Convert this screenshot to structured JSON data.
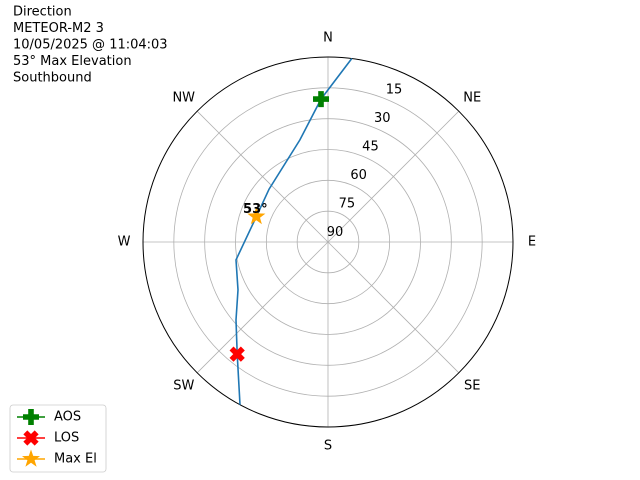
{
  "chart_data": {
    "type": "polar",
    "title_lines": [
      "Direction",
      "METEOR-M2 3",
      "10/05/2025 @ 11:04:03",
      "53° Max Elevation",
      "Southbound"
    ],
    "xticks": [
      {
        "value": 0,
        "label": "N"
      },
      {
        "value": 45,
        "label": "NE"
      },
      {
        "value": 90,
        "label": "E"
      },
      {
        "value": 135,
        "label": "SE"
      },
      {
        "value": 180,
        "label": "S"
      },
      {
        "value": 225,
        "label": "SW"
      },
      {
        "value": 270,
        "label": "W"
      },
      {
        "value": 315,
        "label": "NW"
      }
    ],
    "ylim": [
      90,
      0
    ],
    "yticks": [
      90,
      75,
      60,
      45,
      30,
      15
    ],
    "grid": true,
    "legend": "lower left",
    "track": {
      "color": "#1f77b4",
      "x": [
        7.4,
        357.2,
        344.6,
        311.9,
        289.6,
        259,
        242,
        229.7,
        219,
        208.4
      ],
      "y": [
        0,
        20.4,
        38.5,
        51.5,
        53,
        44.4,
        40.4,
        31.3,
        19.8,
        0
      ]
    },
    "series": [
      {
        "name": "AOS",
        "color": "green",
        "marker": "plus",
        "x": [
          357.2
        ],
        "y": [
          20.4
        ]
      },
      {
        "name": "LOS",
        "color": "red",
        "marker": "x",
        "x": [
          219
        ],
        "y": [
          19.8
        ]
      },
      {
        "name": "Max El",
        "color": "orange",
        "marker": "star",
        "x": [
          289.6
        ],
        "y": [
          53
        ]
      }
    ],
    "annotations": [
      {
        "text": "53°",
        "x": 289.6,
        "y": 53
      }
    ]
  }
}
